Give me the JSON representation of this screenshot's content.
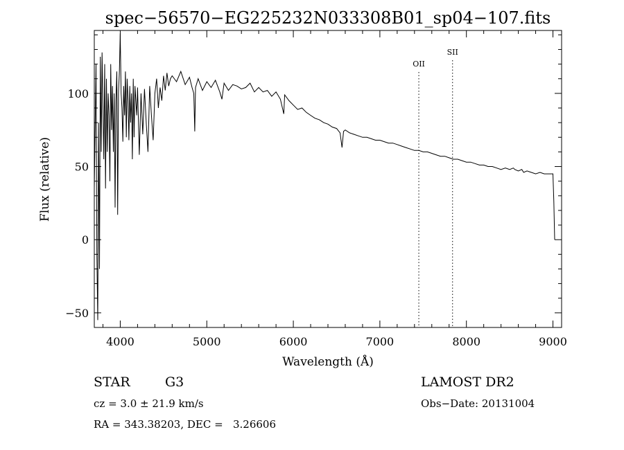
{
  "chart_data": {
    "type": "line",
    "title": "spec−56570−EG225232N033308B01_sp04−107.fits",
    "xlabel": "Wavelength (Å)",
    "ylabel": "Flux (relative)",
    "xlim": [
      3700,
      9100
    ],
    "ylim": [
      -60,
      143
    ],
    "xticks": [
      4000,
      5000,
      6000,
      7000,
      8000,
      9000
    ],
    "xtick_labels": [
      "4000",
      "5000",
      "6000",
      "7000",
      "8000",
      "9000"
    ],
    "yticks": [
      -50,
      0,
      50,
      100
    ],
    "ytick_labels": [
      "−50",
      "0",
      "50",
      "100"
    ],
    "grid": false,
    "series": [
      {
        "x": [
          3700,
          3720,
          3730,
          3740,
          3750,
          3760,
          3770,
          3780,
          3790,
          3800,
          3810,
          3820,
          3830,
          3840,
          3850,
          3860,
          3870,
          3880,
          3890,
          3900,
          3910,
          3920,
          3930,
          3940,
          3950,
          3960,
          3970,
          3980,
          3990,
          4000,
          4010,
          4020,
          4030,
          4040,
          4050,
          4060,
          4070,
          4080,
          4090,
          4100,
          4110,
          4120,
          4130,
          4140,
          4150,
          4160,
          4170,
          4180,
          4190,
          4200,
          4220,
          4240,
          4260,
          4280,
          4300,
          4320,
          4340,
          4360,
          4380,
          4400,
          4420,
          4440,
          4460,
          4480,
          4500,
          4520,
          4540,
          4560,
          4580,
          4600,
          4650,
          4700,
          4750,
          4800,
          4830,
          4850,
          4861,
          4870,
          4900,
          4950,
          5000,
          5050,
          5100,
          5150,
          5175,
          5200,
          5250,
          5300,
          5350,
          5400,
          5450,
          5500,
          5550,
          5600,
          5650,
          5700,
          5750,
          5800,
          5850,
          5890,
          5900,
          5950,
          6000,
          6050,
          6100,
          6150,
          6200,
          6250,
          6300,
          6350,
          6400,
          6450,
          6500,
          6540,
          6563,
          6580,
          6600,
          6650,
          6700,
          6750,
          6800,
          6850,
          6900,
          6950,
          7000,
          7050,
          7100,
          7150,
          7200,
          7250,
          7300,
          7350,
          7400,
          7450,
          7500,
          7550,
          7600,
          7650,
          7700,
          7750,
          7800,
          7850,
          7900,
          7950,
          8000,
          8050,
          8100,
          8150,
          8200,
          8250,
          8300,
          8350,
          8400,
          8450,
          8500,
          8542,
          8560,
          8600,
          8640,
          8662,
          8700,
          8750,
          8800,
          8850,
          8900,
          8950,
          9000,
          9010,
          9020
        ],
        "y": [
          35,
          120,
          -10,
          -55,
          80,
          -20,
          125,
          60,
          128,
          90,
          55,
          120,
          35,
          110,
          60,
          100,
          85,
          40,
          120,
          75,
          105,
          60,
          100,
          22,
          95,
          115,
          17,
          100,
          115,
          141,
          100,
          90,
          67,
          105,
          85,
          115,
          70,
          110,
          95,
          68,
          105,
          80,
          100,
          55,
          110,
          70,
          105,
          95,
          85,
          104,
          58,
          100,
          72,
          103,
          80,
          60,
          105,
          85,
          68,
          100,
          110,
          90,
          104,
          95,
          112,
          102,
          114,
          105,
          110,
          112,
          108,
          115,
          106,
          111,
          104,
          100,
          74,
          104,
          110,
          102,
          108,
          104,
          109,
          101,
          96,
          107,
          102,
          106,
          105,
          103,
          104,
          107,
          101,
          104,
          101,
          102,
          98,
          101,
          96,
          86,
          99,
          95,
          92,
          89,
          90,
          87,
          85,
          83,
          82,
          80,
          79,
          77,
          76,
          73,
          63,
          74,
          75,
          73,
          72,
          71,
          70,
          70,
          69,
          68,
          68,
          67,
          66,
          66,
          65,
          64,
          63,
          62,
          61,
          61,
          60,
          60,
          59,
          58,
          57,
          57,
          56,
          55,
          55,
          54,
          53,
          53,
          52,
          51,
          51,
          50,
          50,
          49,
          48,
          49,
          48,
          49,
          48,
          47,
          48,
          46,
          47,
          46,
          45,
          46,
          45,
          45,
          45,
          26,
          0
        ]
      }
    ],
    "annotations": [
      {
        "label": "OII",
        "x": 7450
      },
      {
        "label": "SII",
        "x": 7840
      }
    ]
  },
  "info": {
    "object_class": "STAR",
    "subclass": "G3",
    "survey": "LAMOST DR2",
    "cz": "cz = 3.0 ± 21.9 km/s",
    "obs_date": "Obs−Date: 20131004",
    "radec": "RA = 343.38203, DEC =   3.26606"
  }
}
